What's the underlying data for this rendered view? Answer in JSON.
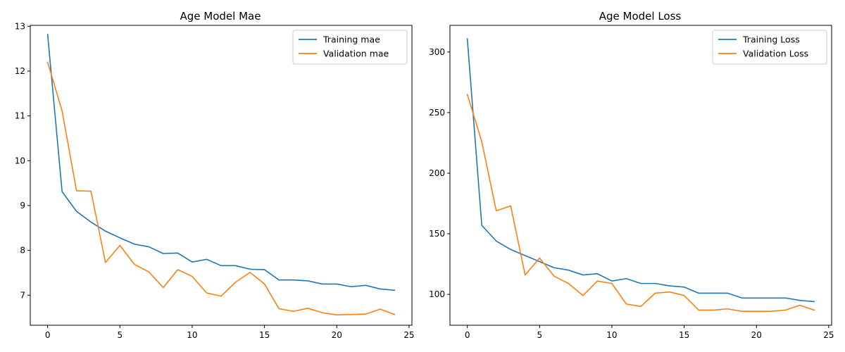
{
  "chart_data": [
    {
      "type": "line",
      "title": "Age Model Mae",
      "xlabel": "",
      "ylabel": "",
      "xlim": [
        -1.2,
        25.2
      ],
      "ylim": [
        6.33,
        13.02
      ],
      "xticks": [
        0,
        5,
        10,
        15,
        20,
        25
      ],
      "yticks": [
        7,
        8,
        9,
        10,
        11,
        12,
        13
      ],
      "legend_position": "top-right",
      "grid": false,
      "x": [
        0,
        1,
        2,
        3,
        4,
        5,
        6,
        7,
        8,
        9,
        10,
        11,
        12,
        13,
        14,
        15,
        16,
        17,
        18,
        19,
        20,
        21,
        22,
        23,
        24
      ],
      "series": [
        {
          "name": "Training mae",
          "color": "#1f77b4",
          "values": [
            12.82,
            9.31,
            8.87,
            8.63,
            8.43,
            8.28,
            8.14,
            8.08,
            7.93,
            7.94,
            7.74,
            7.8,
            7.66,
            7.66,
            7.58,
            7.57,
            7.34,
            7.34,
            7.32,
            7.25,
            7.25,
            7.19,
            7.22,
            7.14,
            7.11
          ]
        },
        {
          "name": "Validation mae",
          "color": "#ff7f0e",
          "values": [
            12.2,
            11.11,
            9.33,
            9.32,
            7.73,
            8.11,
            7.69,
            7.52,
            7.17,
            7.57,
            7.42,
            7.05,
            6.98,
            7.29,
            7.51,
            7.25,
            6.7,
            6.64,
            6.71,
            6.61,
            6.56,
            6.57,
            6.58,
            6.69,
            6.57
          ]
        }
      ]
    },
    {
      "type": "line",
      "title": "Age Model Loss",
      "xlabel": "",
      "ylabel": "",
      "xlim": [
        -1.2,
        25.2
      ],
      "ylim": [
        74.5,
        322
      ],
      "xticks": [
        0,
        5,
        10,
        15,
        20,
        25
      ],
      "yticks": [
        100,
        150,
        200,
        250,
        300
      ],
      "legend_position": "top-right",
      "grid": false,
      "x": [
        0,
        1,
        2,
        3,
        4,
        5,
        6,
        7,
        8,
        9,
        10,
        11,
        12,
        13,
        14,
        15,
        16,
        17,
        18,
        19,
        20,
        21,
        22,
        23,
        24
      ],
      "series": [
        {
          "name": "Training Loss",
          "color": "#1f77b4",
          "values": [
            311,
            157,
            144,
            137,
            132,
            127,
            122,
            120,
            116,
            117,
            111,
            113,
            109,
            109,
            107,
            106,
            101,
            101,
            101,
            97,
            97,
            97,
            97,
            95,
            94
          ]
        },
        {
          "name": "Validation Loss",
          "color": "#ff7f0e",
          "values": [
            265,
            226,
            169,
            173,
            116,
            130,
            115,
            109,
            99,
            111,
            109,
            92,
            90,
            101,
            102,
            99,
            87,
            87,
            88,
            86,
            86,
            86,
            87,
            91,
            87
          ]
        }
      ]
    }
  ]
}
